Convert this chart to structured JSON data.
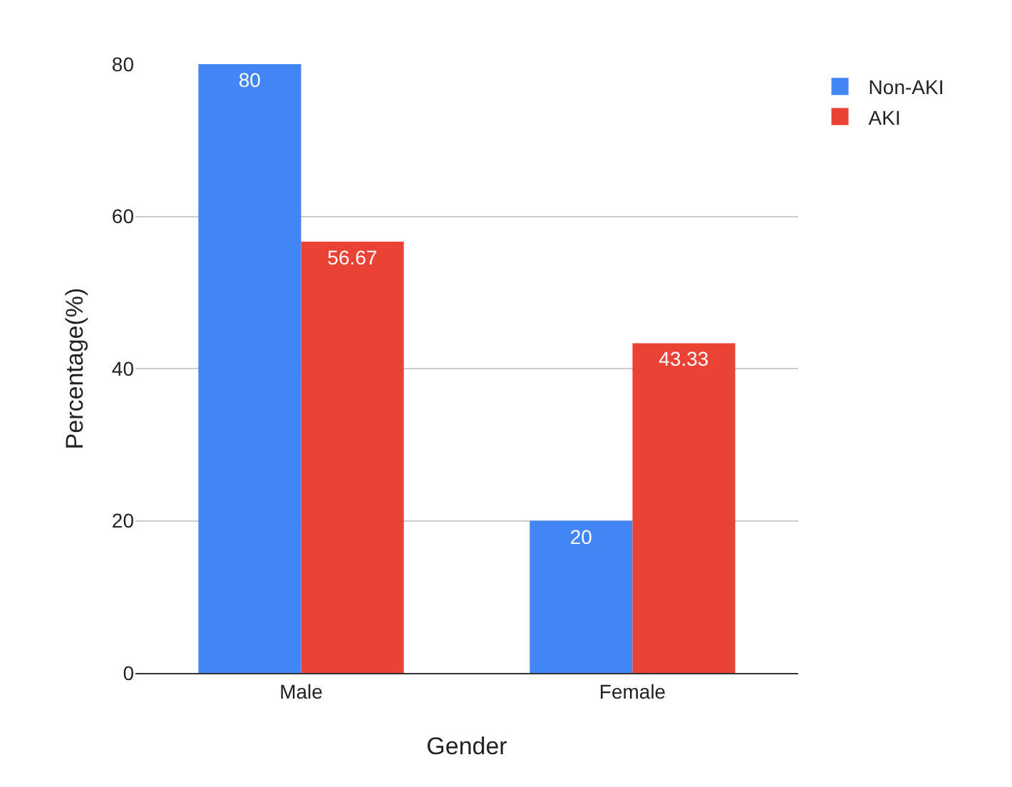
{
  "chart_data": {
    "type": "bar",
    "xlabel": "Gender",
    "ylabel": "Percentage(%)",
    "categories": [
      "Male",
      "Female"
    ],
    "series": [
      {
        "name": "Non-AKI",
        "color": "#4285f4",
        "values": [
          80,
          20
        ]
      },
      {
        "name": "AKI",
        "color": "#ea4335",
        "values": [
          56.67,
          43.33
        ]
      }
    ],
    "ylim": [
      0,
      80
    ],
    "yticks": [
      0,
      20,
      40,
      60,
      80
    ],
    "grid": "y",
    "legend": "top right",
    "data_labels": true
  }
}
